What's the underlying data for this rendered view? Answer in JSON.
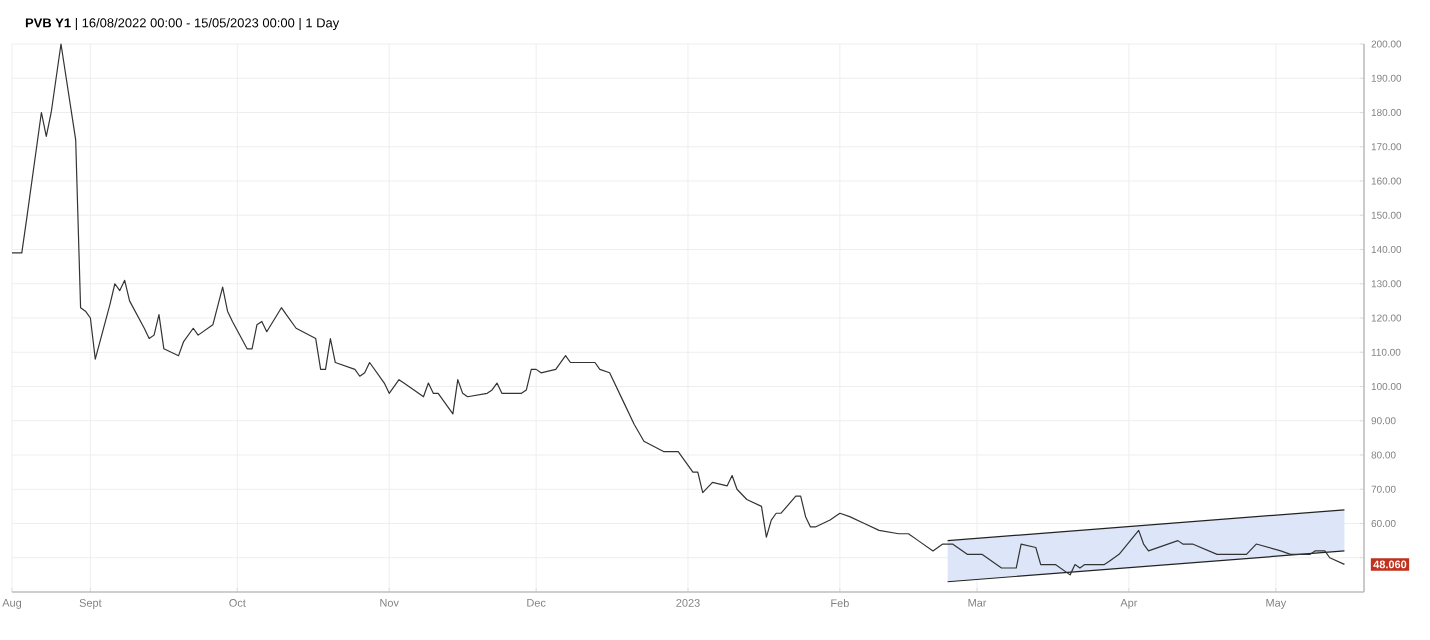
{
  "chart_data": {
    "type": "line",
    "title": "**PVB Y1** | 16/08/2022 00:00 - 15/05/2023 00:00 | 1 Day",
    "xlim": [
      "2022-08-16",
      "2023-05-19"
    ],
    "ylim": [
      40,
      200
    ],
    "xticks": [
      {
        "value": "2022-08-16",
        "label": "Aug"
      },
      {
        "value": "2022-09-01",
        "label": "Sept"
      },
      {
        "value": "2022-10-01",
        "label": "Oct"
      },
      {
        "value": "2022-11-01",
        "label": "Nov"
      },
      {
        "value": "2022-12-01",
        "label": "Dec"
      },
      {
        "value": "2023-01-01",
        "label": "2023"
      },
      {
        "value": "2023-02-01",
        "label": "Feb"
      },
      {
        "value": "2023-03-01",
        "label": "Mar"
      },
      {
        "value": "2023-04-01",
        "label": "Apr"
      },
      {
        "value": "2023-05-01",
        "label": "May"
      }
    ],
    "yticks": [
      {
        "value": 50,
        "label": null
      },
      {
        "value": 60,
        "label": "60.00"
      },
      {
        "value": 70,
        "label": "70.00"
      },
      {
        "value": 80,
        "label": "80.00"
      },
      {
        "value": 90,
        "label": "90.00"
      },
      {
        "value": 100,
        "label": "100.00"
      },
      {
        "value": 110,
        "label": "110.00"
      },
      {
        "value": 120,
        "label": "120.00"
      },
      {
        "value": 130,
        "label": "130.00"
      },
      {
        "value": 140,
        "label": "140.00"
      },
      {
        "value": 150,
        "label": "150.00"
      },
      {
        "value": 160,
        "label": "160.00"
      },
      {
        "value": 170,
        "label": "170.00"
      },
      {
        "value": 180,
        "label": "180.00"
      },
      {
        "value": 190,
        "label": "190.00"
      },
      {
        "value": 200,
        "label": "200.00"
      }
    ],
    "grid": true,
    "marker": "none",
    "line_style": "solid",
    "series": [
      {
        "color": "#222222",
        "x": [
          "2023-02-23",
          "2023-05-15"
        ],
        "values": [
          43,
          52
        ],
        "lower": [
          43,
          52
        ],
        "upper": [
          55,
          64
        ]
      },
      {
        "color": "#222222",
        "x": [
          "2023-02-23",
          "2023-05-15"
        ],
        "values": [
          55,
          64
        ]
      },
      {
        "color": "#333333",
        "x": [
          "2022-08-16",
          "2022-08-18",
          "2022-08-19",
          "2022-08-22",
          "2022-08-23",
          "2022-08-24",
          "2022-08-26",
          "2022-08-29",
          "2022-08-30",
          "2022-08-31",
          "2022-09-01",
          "2022-09-02",
          "2022-09-05",
          "2022-09-06",
          "2022-09-07",
          "2022-09-08",
          "2022-09-09",
          "2022-09-12",
          "2022-09-13",
          "2022-09-14",
          "2022-09-15",
          "2022-09-16",
          "2022-09-19",
          "2022-09-20",
          "2022-09-22",
          "2022-09-23",
          "2022-09-26",
          "2022-09-28",
          "2022-09-29",
          "2022-09-30",
          "2022-10-03",
          "2022-10-04",
          "2022-10-05",
          "2022-10-06",
          "2022-10-07",
          "2022-10-10",
          "2022-10-11",
          "2022-10-13",
          "2022-10-17",
          "2022-10-18",
          "2022-10-19",
          "2022-10-20",
          "2022-10-21",
          "2022-10-25",
          "2022-10-26",
          "2022-10-27",
          "2022-10-28",
          "2022-10-31",
          "2022-11-01",
          "2022-11-03",
          "2022-11-04",
          "2022-11-07",
          "2022-11-08",
          "2022-11-09",
          "2022-11-10",
          "2022-11-11",
          "2022-11-14",
          "2022-11-15",
          "2022-11-16",
          "2022-11-17",
          "2022-11-21",
          "2022-11-22",
          "2022-11-23",
          "2022-11-24",
          "2022-11-25",
          "2022-11-28",
          "2022-11-29",
          "2022-11-30",
          "2022-12-01",
          "2022-12-02",
          "2022-12-05",
          "2022-12-07",
          "2022-12-08",
          "2022-12-13",
          "2022-12-14",
          "2022-12-16",
          "2022-12-19",
          "2022-12-21",
          "2022-12-23",
          "2022-12-27",
          "2022-12-29",
          "2022-12-30",
          "2023-01-02",
          "2023-01-03",
          "2023-01-04",
          "2023-01-06",
          "2023-01-09",
          "2023-01-10",
          "2023-01-11",
          "2023-01-13",
          "2023-01-16",
          "2023-01-17",
          "2023-01-18",
          "2023-01-19",
          "2023-01-20",
          "2023-01-23",
          "2023-01-24",
          "2023-01-25",
          "2023-01-26",
          "2023-01-27",
          "2023-01-30",
          "2023-02-01",
          "2023-02-03",
          "2023-02-06",
          "2023-02-09",
          "2023-02-13",
          "2023-02-15",
          "2023-02-17",
          "2023-02-20",
          "2023-02-22",
          "2023-02-24",
          "2023-02-27",
          "2023-03-02",
          "2023-03-06",
          "2023-03-07",
          "2023-03-09",
          "2023-03-10",
          "2023-03-13",
          "2023-03-14",
          "2023-03-15",
          "2023-03-17",
          "2023-03-20",
          "2023-03-21",
          "2023-03-22",
          "2023-03-23",
          "2023-03-27",
          "2023-03-28",
          "2023-03-30",
          "2023-04-03",
          "2023-04-04",
          "2023-04-05",
          "2023-04-11",
          "2023-04-12",
          "2023-04-14",
          "2023-04-19",
          "2023-04-21",
          "2023-04-25",
          "2023-04-27",
          "2023-05-02",
          "2023-05-04",
          "2023-05-08",
          "2023-05-09",
          "2023-05-11",
          "2023-05-12",
          "2023-05-15"
        ],
        "values": [
          139,
          139,
          149,
          180,
          173,
          180,
          200,
          172,
          123,
          122,
          120,
          108,
          124,
          130,
          128,
          131,
          125,
          117,
          114,
          115,
          121,
          111,
          109,
          113,
          117,
          115,
          118,
          129,
          122,
          119,
          111,
          111,
          118,
          119,
          116,
          123,
          121,
          117,
          114,
          105,
          105,
          114,
          107,
          105,
          103,
          104,
          107,
          101,
          98,
          102,
          101,
          98,
          97,
          101,
          98,
          98,
          92,
          102,
          98,
          97,
          98,
          99,
          101,
          98,
          98,
          98,
          99,
          105,
          105,
          104,
          105,
          109,
          107,
          107,
          105,
          104,
          95,
          89,
          84,
          81,
          81,
          81,
          75,
          75,
          69,
          72,
          71,
          74,
          70,
          67,
          65,
          56,
          61,
          63,
          63,
          68,
          68,
          62,
          59,
          59,
          61,
          63,
          62,
          60,
          58,
          57,
          57,
          55,
          52,
          54,
          54,
          51,
          51,
          47,
          47,
          47,
          54,
          53,
          48,
          48,
          48,
          45,
          48,
          47,
          48,
          48,
          49,
          51,
          58,
          54,
          52,
          55,
          54,
          54,
          51,
          51,
          51,
          54,
          52,
          51,
          51,
          52,
          52,
          50,
          48.06
        ]
      }
    ],
    "annotations": [
      {
        "text": "48.060",
        "x": "2023-05-15",
        "y": 48.06
      }
    ]
  }
}
